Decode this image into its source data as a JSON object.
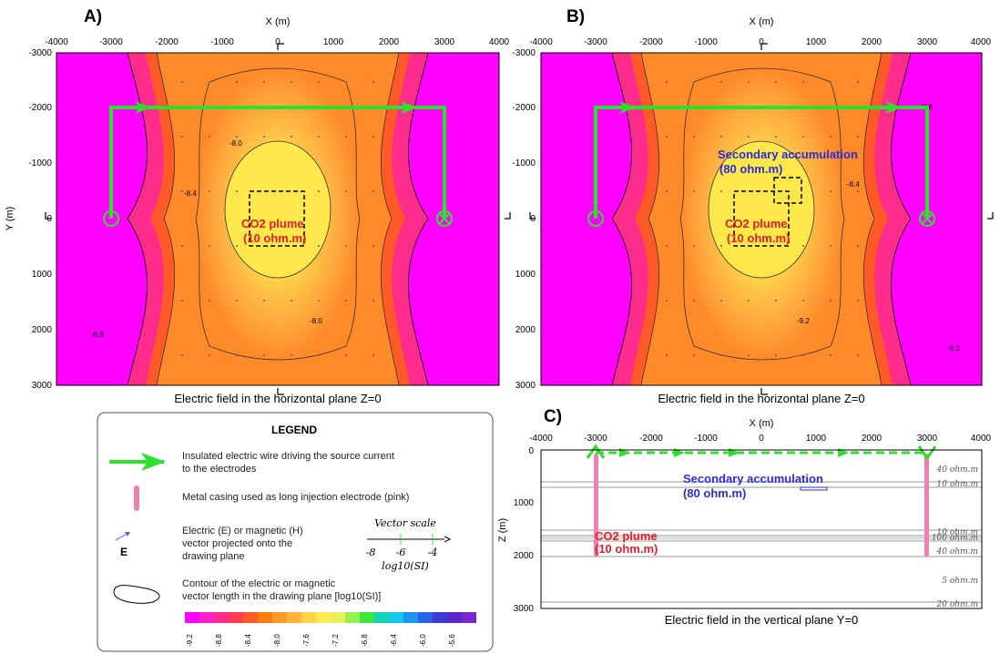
{
  "panels": {
    "a": {
      "label": "A)",
      "x_axis_title": "X (m)",
      "y_axis_title": "Y (m)",
      "caption": "Electric field in the horizontal plane Z=0",
      "plume_label_1": "CO2 plume",
      "plume_label_2": "(10 ohm.m)",
      "x_ticks": [
        "-4000",
        "-3000",
        "-2000",
        "-1000",
        "0",
        "1000",
        "2000",
        "3000",
        "4000"
      ],
      "y_ticks": [
        "-3000",
        "-2000",
        "-1000",
        "0",
        "1000",
        "2000",
        "3000"
      ]
    },
    "b": {
      "label": "B)",
      "x_axis_title": "X (m)",
      "caption": "Electric field in the horizontal plane Z=0",
      "plume_label_1": "CO2 plume",
      "plume_label_2": "(10 ohm.m)",
      "secondary_label_1": "Secondary accumulation",
      "secondary_label_2": "(80 ohm.m)",
      "x_ticks": [
        "-4000",
        "-3000",
        "-2000",
        "-1000",
        "0",
        "1000",
        "2000",
        "3000",
        "4000"
      ],
      "y_ticks": [
        "-3000",
        "-2000",
        "-1000",
        "0",
        "1000",
        "2000",
        "3000"
      ]
    },
    "c": {
      "label": "C)",
      "x_axis_title": "X (m)",
      "z_axis_title": "Z (m)",
      "caption": "Electric field in the vertical plane Y=0",
      "secondary_label_1": "Secondary accumulation",
      "secondary_label_2": "(80 ohm.m)",
      "plume_label_1": "CO2 plume",
      "plume_label_2": "(10 ohm.m)",
      "x_ticks": [
        "-4000",
        "-3000",
        "-2000",
        "-1000",
        "0",
        "1000",
        "2000",
        "3000",
        "4000"
      ],
      "z_ticks": [
        "0",
        "1000",
        "2000",
        "3000"
      ],
      "layer_labels": [
        "40 ohm.m",
        "10 ohm.m",
        "10 ohm.m",
        "100 ohm.m",
        "40 ohm.m",
        "5 ohm.m",
        "20 ohm.m"
      ]
    }
  },
  "contour_labels": [
    "-8.0",
    "-8.0",
    "-8.4",
    "-8.8",
    "-9.2",
    "-8.4",
    "-8.8",
    "-9.2"
  ],
  "legend": {
    "title": "LEGEND",
    "wire_1": "Insulated electric wire driving the source current",
    "wire_2": "to the electrodes",
    "casing": "Metal casing used as long injection electrode (pink)",
    "vector_1": "Electric (E) or magnetic (H)",
    "vector_2": "vector projected onto the",
    "vector_3": "drawing plane",
    "vector_symbol": "E",
    "vector_scale_title": "Vector scale",
    "vector_scale_ticks": [
      "-8",
      "-6",
      "-4"
    ],
    "vector_scale_unit": "log10(SI)",
    "contour_1": "Contour of the electric or magnetic",
    "contour_2": "vector length in the drawing plane [log10(SI)]",
    "colorbar_ticks": [
      "-9.2",
      "-8.8",
      "-8.4",
      "-8.0",
      "-7.6",
      "-7.2",
      "-6.8",
      "-6.4",
      "-6.0",
      "-5.6"
    ]
  },
  "colors": {
    "magenta": "#ff00ff",
    "wire_green": "#2ee02e",
    "casing_pink": "#f080b0",
    "plume_red": "#e0202a",
    "secondary_blue": "#2b2bd8"
  },
  "colorbar": [
    "#ff00ff",
    "#ff1ec8",
    "#ff2c8c",
    "#ff3c50",
    "#ff5a28",
    "#ff7d10",
    "#ff9a28",
    "#ffb43c",
    "#ffd24a",
    "#ffeb55",
    "#e6f05a",
    "#96f050",
    "#3ce63c",
    "#14d2b4",
    "#14c8e6",
    "#1e96f0",
    "#2864e6",
    "#3c3cd2",
    "#5a28c8",
    "#7828c8"
  ]
}
